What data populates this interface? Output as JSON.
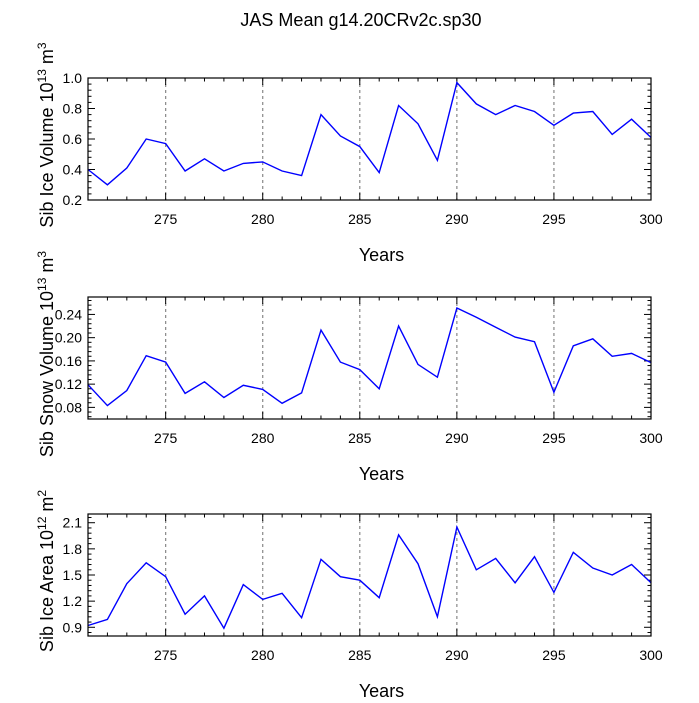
{
  "title": "JAS Mean g14.20CRv2c.sp30",
  "chart_data": [
    {
      "type": "line",
      "ylabel": "Sib Ice Volume 10",
      "ylabel_exp": "13",
      "ylabel_unit": " m",
      "ylabel_unit_exp": "3",
      "xlabel": "Years",
      "xlim": [
        271,
        300
      ],
      "ylim": [
        0.2,
        1.0
      ],
      "xticks": [
        275,
        280,
        285,
        290,
        295,
        300
      ],
      "yticks": [
        0.2,
        0.4,
        0.6,
        0.8,
        1.0
      ],
      "ytick_labels": [
        "0.2",
        "0.4",
        "0.6",
        "0.8",
        "1.0"
      ],
      "grid_x": [
        275,
        280,
        285,
        290,
        295
      ],
      "series": [
        {
          "name": "Sib Ice Volume",
          "color": "#0000ff",
          "x": [
            271,
            272,
            273,
            274,
            275,
            276,
            277,
            278,
            279,
            280,
            281,
            282,
            283,
            284,
            285,
            286,
            287,
            288,
            289,
            290,
            291,
            292,
            293,
            294,
            295,
            296,
            297,
            298,
            299,
            300
          ],
          "y": [
            0.4,
            0.3,
            0.41,
            0.6,
            0.57,
            0.39,
            0.47,
            0.39,
            0.44,
            0.45,
            0.39,
            0.36,
            0.76,
            0.62,
            0.55,
            0.38,
            0.82,
            0.7,
            0.46,
            0.97,
            0.83,
            0.76,
            0.82,
            0.78,
            0.69,
            0.77,
            0.78,
            0.63,
            0.73,
            0.61
          ]
        }
      ]
    },
    {
      "type": "line",
      "ylabel": "Sib Snow Volume 10",
      "ylabel_exp": "13",
      "ylabel_unit": " m",
      "ylabel_unit_exp": "3",
      "xlabel": "Years",
      "xlim": [
        271,
        300
      ],
      "ylim": [
        0.06,
        0.27
      ],
      "xticks": [
        275,
        280,
        285,
        290,
        295,
        300
      ],
      "yticks": [
        0.08,
        0.12,
        0.16,
        0.2,
        0.24
      ],
      "ytick_labels": [
        "0.08",
        "0.12",
        "0.16",
        "0.20",
        "0.24"
      ],
      "grid_x": [
        275,
        280,
        285,
        290,
        295
      ],
      "series": [
        {
          "name": "Sib Snow Volume",
          "color": "#0000ff",
          "x": [
            271,
            272,
            273,
            274,
            275,
            276,
            277,
            278,
            279,
            280,
            281,
            282,
            283,
            284,
            285,
            286,
            287,
            288,
            289,
            290,
            291,
            292,
            293,
            294,
            295,
            296,
            297,
            298,
            299,
            300
          ],
          "y": [
            0.119,
            0.083,
            0.109,
            0.169,
            0.158,
            0.104,
            0.124,
            0.097,
            0.118,
            0.111,
            0.087,
            0.105,
            0.213,
            0.158,
            0.145,
            0.112,
            0.22,
            0.154,
            0.132,
            0.251,
            0.235,
            0.218,
            0.201,
            0.193,
            0.106,
            0.186,
            0.198,
            0.168,
            0.173,
            0.157
          ]
        }
      ]
    },
    {
      "type": "line",
      "ylabel": "Sib Ice Area 10",
      "ylabel_exp": "12",
      "ylabel_unit": " m",
      "ylabel_unit_exp": "2",
      "xlabel": "Years",
      "xlim": [
        271,
        300
      ],
      "ylim": [
        0.8,
        2.2
      ],
      "xticks": [
        275,
        280,
        285,
        290,
        295,
        300
      ],
      "yticks": [
        0.9,
        1.2,
        1.5,
        1.8,
        2.1
      ],
      "ytick_labels": [
        "0.9",
        "1.2",
        "1.5",
        "1.8",
        "2.1"
      ],
      "grid_x": [
        275,
        280,
        285,
        290,
        295
      ],
      "series": [
        {
          "name": "Sib Ice Area",
          "color": "#0000ff",
          "x": [
            271,
            272,
            273,
            274,
            275,
            276,
            277,
            278,
            279,
            280,
            281,
            282,
            283,
            284,
            285,
            286,
            287,
            288,
            289,
            290,
            291,
            292,
            293,
            294,
            295,
            296,
            297,
            298,
            299,
            300
          ],
          "y": [
            0.92,
            0.99,
            1.4,
            1.64,
            1.48,
            1.05,
            1.26,
            0.89,
            1.39,
            1.22,
            1.29,
            1.01,
            1.68,
            1.48,
            1.44,
            1.24,
            1.96,
            1.63,
            1.02,
            2.05,
            1.56,
            1.69,
            1.41,
            1.71,
            1.3,
            1.76,
            1.58,
            1.5,
            1.62,
            1.41
          ]
        }
      ]
    }
  ]
}
